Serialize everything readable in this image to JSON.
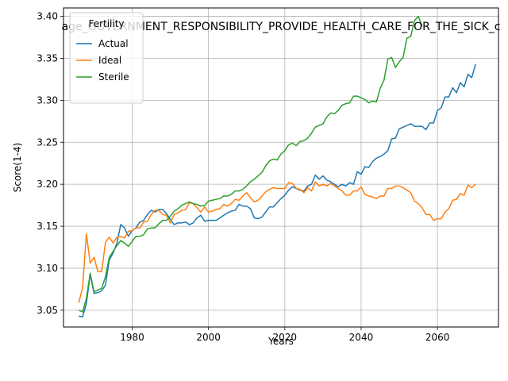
{
  "chart_data": {
    "type": "line",
    "title": "age_GOVERNMENT_RESPONSIBILITY_PROVIDE_HEALTH_CARE_FOR_THE_SICK_c",
    "xlabel": "Years",
    "ylabel": "Score(1-4)",
    "xlim": [
      1962,
      2076
    ],
    "ylim": [
      3.03,
      3.41
    ],
    "xticks": [
      1980,
      2000,
      2020,
      2040,
      2060
    ],
    "yticks": [
      3.05,
      3.1,
      3.15,
      3.2,
      3.25,
      3.3,
      3.35,
      3.4
    ],
    "xtick_labels": [
      "1980",
      "2000",
      "2020",
      "2040",
      "2060"
    ],
    "ytick_labels": [
      "3.05",
      "3.10",
      "3.15",
      "3.20",
      "3.25",
      "3.30",
      "3.35",
      "3.40"
    ],
    "grid": true,
    "legend": {
      "title": "Fertility",
      "position": "top-left"
    },
    "series": [
      {
        "name": "Actual",
        "color": "#1f77b4",
        "points": [
          [
            1966,
            3.043
          ],
          [
            1967,
            3.042
          ],
          [
            1968,
            3.058
          ],
          [
            1969,
            3.093
          ],
          [
            1970,
            3.07
          ],
          [
            1971,
            3.071
          ],
          [
            1972,
            3.073
          ],
          [
            1973,
            3.08
          ],
          [
            1974,
            3.11
          ],
          [
            1975,
            3.118
          ],
          [
            1976,
            3.13
          ],
          [
            1977,
            3.152
          ],
          [
            1978,
            3.148
          ],
          [
            1979,
            3.138
          ],
          [
            1980,
            3.145
          ],
          [
            1981,
            3.148
          ],
          [
            1982,
            3.155
          ],
          [
            1983,
            3.157
          ],
          [
            1984,
            3.164
          ],
          [
            1985,
            3.169
          ],
          [
            1986,
            3.167
          ],
          [
            1987,
            3.17
          ],
          [
            1988,
            3.17
          ],
          [
            1989,
            3.165
          ],
          [
            1990,
            3.158
          ],
          [
            1991,
            3.152
          ],
          [
            1992,
            3.154
          ],
          [
            1993,
            3.154
          ],
          [
            1994,
            3.155
          ],
          [
            1995,
            3.152
          ],
          [
            1996,
            3.154
          ],
          [
            1997,
            3.16
          ],
          [
            1998,
            3.163
          ],
          [
            1999,
            3.156
          ],
          [
            2000,
            3.157
          ],
          [
            2001,
            3.157
          ],
          [
            2002,
            3.157
          ],
          [
            2003,
            3.16
          ],
          [
            2004,
            3.163
          ],
          [
            2005,
            3.166
          ],
          [
            2006,
            3.168
          ],
          [
            2007,
            3.169
          ],
          [
            2008,
            3.176
          ],
          [
            2009,
            3.174
          ],
          [
            2010,
            3.174
          ],
          [
            2011,
            3.171
          ],
          [
            2012,
            3.16
          ],
          [
            2013,
            3.159
          ],
          [
            2014,
            3.161
          ],
          [
            2015,
            3.167
          ],
          [
            2016,
            3.173
          ],
          [
            2017,
            3.173
          ],
          [
            2018,
            3.178
          ],
          [
            2019,
            3.183
          ],
          [
            2020,
            3.187
          ],
          [
            2021,
            3.193
          ],
          [
            2022,
            3.197
          ],
          [
            2023,
            3.195
          ],
          [
            2024,
            3.193
          ],
          [
            2025,
            3.192
          ],
          [
            2026,
            3.198
          ],
          [
            2027,
            3.2
          ],
          [
            2028,
            3.211
          ],
          [
            2029,
            3.206
          ],
          [
            2030,
            3.21
          ],
          [
            2031,
            3.205
          ],
          [
            2032,
            3.203
          ],
          [
            2033,
            3.2
          ],
          [
            2034,
            3.197
          ],
          [
            2035,
            3.2
          ],
          [
            2036,
            3.198
          ],
          [
            2037,
            3.202
          ],
          [
            2038,
            3.2
          ],
          [
            2039,
            3.215
          ],
          [
            2040,
            3.212
          ],
          [
            2041,
            3.221
          ],
          [
            2042,
            3.22
          ],
          [
            2043,
            3.227
          ],
          [
            2044,
            3.231
          ],
          [
            2045,
            3.233
          ],
          [
            2046,
            3.236
          ],
          [
            2047,
            3.24
          ],
          [
            2048,
            3.254
          ],
          [
            2049,
            3.255
          ],
          [
            2050,
            3.266
          ],
          [
            2051,
            3.268
          ],
          [
            2052,
            3.27
          ],
          [
            2053,
            3.272
          ],
          [
            2054,
            3.269
          ],
          [
            2055,
            3.269
          ],
          [
            2056,
            3.269
          ],
          [
            2057,
            3.265
          ],
          [
            2058,
            3.273
          ],
          [
            2059,
            3.273
          ],
          [
            2060,
            3.288
          ],
          [
            2061,
            3.291
          ],
          [
            2062,
            3.304
          ],
          [
            2063,
            3.304
          ],
          [
            2064,
            3.315
          ],
          [
            2065,
            3.309
          ],
          [
            2066,
            3.321
          ],
          [
            2067,
            3.316
          ],
          [
            2068,
            3.331
          ],
          [
            2069,
            3.327
          ],
          [
            2070,
            3.343
          ]
        ]
      },
      {
        "name": "Ideal",
        "color": "#ff7f0e",
        "points": [
          [
            1966,
            3.059
          ],
          [
            1967,
            3.077
          ],
          [
            1968,
            3.141
          ],
          [
            1969,
            3.106
          ],
          [
            1970,
            3.113
          ],
          [
            1971,
            3.096
          ],
          [
            1972,
            3.096
          ],
          [
            1973,
            3.131
          ],
          [
            1974,
            3.137
          ],
          [
            1975,
            3.13
          ],
          [
            1976,
            3.137
          ],
          [
            1977,
            3.138
          ],
          [
            1978,
            3.136
          ],
          [
            1979,
            3.144
          ],
          [
            1980,
            3.145
          ],
          [
            1981,
            3.148
          ],
          [
            1982,
            3.148
          ],
          [
            1983,
            3.155
          ],
          [
            1984,
            3.156
          ],
          [
            1985,
            3.164
          ],
          [
            1986,
            3.169
          ],
          [
            1987,
            3.169
          ],
          [
            1988,
            3.164
          ],
          [
            1989,
            3.163
          ],
          [
            1990,
            3.154
          ],
          [
            1991,
            3.164
          ],
          [
            1992,
            3.166
          ],
          [
            1993,
            3.169
          ],
          [
            1994,
            3.17
          ],
          [
            1995,
            3.178
          ],
          [
            1996,
            3.177
          ],
          [
            1997,
            3.172
          ],
          [
            1998,
            3.167
          ],
          [
            1999,
            3.173
          ],
          [
            2000,
            3.167
          ],
          [
            2001,
            3.168
          ],
          [
            2002,
            3.17
          ],
          [
            2003,
            3.171
          ],
          [
            2004,
            3.176
          ],
          [
            2005,
            3.174
          ],
          [
            2006,
            3.177
          ],
          [
            2007,
            3.182
          ],
          [
            2008,
            3.181
          ],
          [
            2009,
            3.186
          ],
          [
            2010,
            3.19
          ],
          [
            2011,
            3.184
          ],
          [
            2012,
            3.179
          ],
          [
            2013,
            3.181
          ],
          [
            2014,
            3.186
          ],
          [
            2015,
            3.191
          ],
          [
            2016,
            3.194
          ],
          [
            2017,
            3.196
          ],
          [
            2018,
            3.195
          ],
          [
            2019,
            3.195
          ],
          [
            2020,
            3.195
          ],
          [
            2021,
            3.202
          ],
          [
            2022,
            3.201
          ],
          [
            2023,
            3.195
          ],
          [
            2024,
            3.194
          ],
          [
            2025,
            3.19
          ],
          [
            2026,
            3.196
          ],
          [
            2027,
            3.192
          ],
          [
            2028,
            3.203
          ],
          [
            2029,
            3.198
          ],
          [
            2030,
            3.2
          ],
          [
            2031,
            3.198
          ],
          [
            2032,
            3.201
          ],
          [
            2033,
            3.198
          ],
          [
            2034,
            3.195
          ],
          [
            2035,
            3.192
          ],
          [
            2036,
            3.187
          ],
          [
            2037,
            3.187
          ],
          [
            2038,
            3.192
          ],
          [
            2039,
            3.192
          ],
          [
            2040,
            3.197
          ],
          [
            2041,
            3.188
          ],
          [
            2042,
            3.186
          ],
          [
            2043,
            3.185
          ],
          [
            2044,
            3.183
          ],
          [
            2045,
            3.186
          ],
          [
            2046,
            3.186
          ],
          [
            2047,
            3.195
          ],
          [
            2048,
            3.195
          ],
          [
            2049,
            3.198
          ],
          [
            2050,
            3.198
          ],
          [
            2051,
            3.196
          ],
          [
            2052,
            3.193
          ],
          [
            2053,
            3.19
          ],
          [
            2054,
            3.18
          ],
          [
            2055,
            3.177
          ],
          [
            2056,
            3.172
          ],
          [
            2057,
            3.164
          ],
          [
            2058,
            3.164
          ],
          [
            2059,
            3.157
          ],
          [
            2060,
            3.159
          ],
          [
            2061,
            3.159
          ],
          [
            2062,
            3.167
          ],
          [
            2063,
            3.171
          ],
          [
            2064,
            3.181
          ],
          [
            2065,
            3.182
          ],
          [
            2066,
            3.189
          ],
          [
            2067,
            3.187
          ],
          [
            2068,
            3.199
          ],
          [
            2069,
            3.196
          ],
          [
            2070,
            3.2
          ]
        ]
      },
      {
        "name": "Sterile",
        "color": "#2ca02c",
        "points": [
          [
            1966,
            3.05
          ],
          [
            1967,
            3.048
          ],
          [
            1968,
            3.064
          ],
          [
            1969,
            3.094
          ],
          [
            1970,
            3.072
          ],
          [
            1971,
            3.074
          ],
          [
            1972,
            3.076
          ],
          [
            1973,
            3.09
          ],
          [
            1974,
            3.113
          ],
          [
            1975,
            3.12
          ],
          [
            1976,
            3.127
          ],
          [
            1977,
            3.133
          ],
          [
            1978,
            3.13
          ],
          [
            1979,
            3.126
          ],
          [
            1980,
            3.132
          ],
          [
            1981,
            3.138
          ],
          [
            1982,
            3.138
          ],
          [
            1983,
            3.14
          ],
          [
            1984,
            3.147
          ],
          [
            1985,
            3.148
          ],
          [
            1986,
            3.148
          ],
          [
            1987,
            3.153
          ],
          [
            1988,
            3.157
          ],
          [
            1989,
            3.157
          ],
          [
            1990,
            3.162
          ],
          [
            1991,
            3.168
          ],
          [
            1992,
            3.171
          ],
          [
            1993,
            3.175
          ],
          [
            1994,
            3.177
          ],
          [
            1995,
            3.179
          ],
          [
            1996,
            3.177
          ],
          [
            1997,
            3.176
          ],
          [
            1998,
            3.174
          ],
          [
            1999,
            3.175
          ],
          [
            2000,
            3.18
          ],
          [
            2001,
            3.181
          ],
          [
            2002,
            3.182
          ],
          [
            2003,
            3.183
          ],
          [
            2004,
            3.186
          ],
          [
            2005,
            3.186
          ],
          [
            2006,
            3.188
          ],
          [
            2007,
            3.192
          ],
          [
            2008,
            3.192
          ],
          [
            2009,
            3.194
          ],
          [
            2010,
            3.198
          ],
          [
            2011,
            3.203
          ],
          [
            2012,
            3.206
          ],
          [
            2013,
            3.21
          ],
          [
            2014,
            3.214
          ],
          [
            2015,
            3.222
          ],
          [
            2016,
            3.228
          ],
          [
            2017,
            3.23
          ],
          [
            2018,
            3.229
          ],
          [
            2019,
            3.236
          ],
          [
            2020,
            3.24
          ],
          [
            2021,
            3.247
          ],
          [
            2022,
            3.249
          ],
          [
            2023,
            3.246
          ],
          [
            2024,
            3.251
          ],
          [
            2025,
            3.252
          ],
          [
            2026,
            3.255
          ],
          [
            2027,
            3.261
          ],
          [
            2028,
            3.268
          ],
          [
            2029,
            3.27
          ],
          [
            2030,
            3.272
          ],
          [
            2031,
            3.28
          ],
          [
            2032,
            3.285
          ],
          [
            2033,
            3.284
          ],
          [
            2034,
            3.288
          ],
          [
            2035,
            3.294
          ],
          [
            2036,
            3.296
          ],
          [
            2037,
            3.297
          ],
          [
            2038,
            3.305
          ],
          [
            2039,
            3.305
          ],
          [
            2040,
            3.303
          ],
          [
            2041,
            3.301
          ],
          [
            2042,
            3.297
          ],
          [
            2043,
            3.299
          ],
          [
            2044,
            3.298
          ],
          [
            2045,
            3.314
          ],
          [
            2046,
            3.324
          ],
          [
            2047,
            3.349
          ],
          [
            2048,
            3.351
          ],
          [
            2049,
            3.339
          ],
          [
            2050,
            3.346
          ],
          [
            2051,
            3.351
          ],
          [
            2052,
            3.374
          ],
          [
            2053,
            3.376
          ],
          [
            2054,
            3.395
          ],
          [
            2055,
            3.4
          ],
          [
            2056,
            3.388
          ]
        ]
      }
    ]
  }
}
